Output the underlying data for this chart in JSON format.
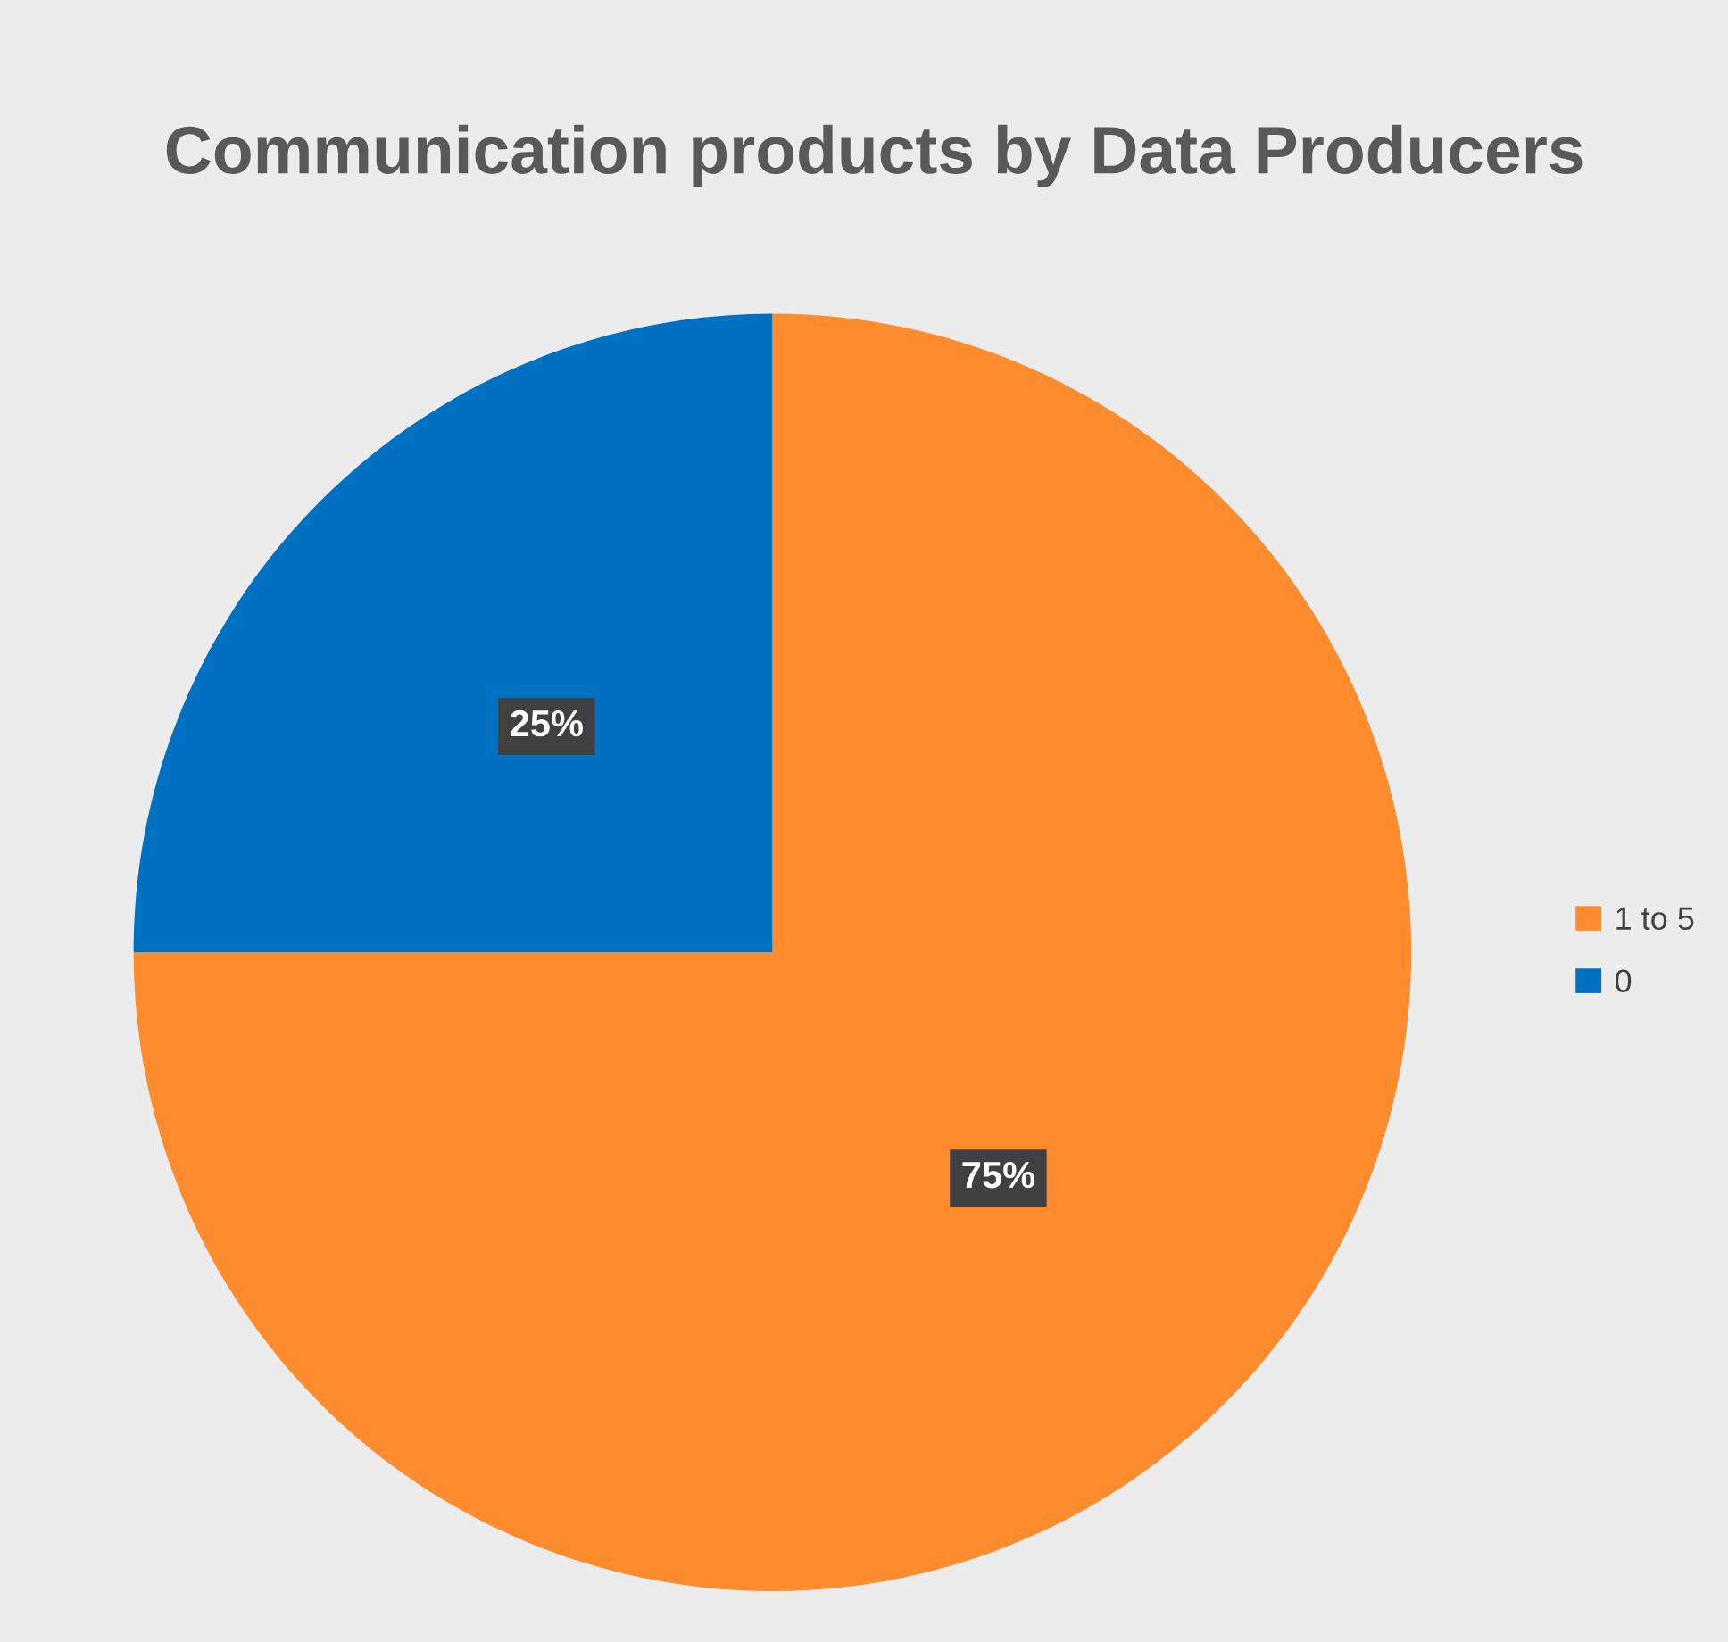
{
  "chart_data": {
    "type": "pie",
    "title": "Communication products by Data Producers",
    "categories": [
      "1 to 5",
      "0"
    ],
    "values": [
      75,
      25
    ],
    "colors": [
      "#fd8c2f",
      "#0070c0"
    ],
    "value_labels": [
      "75%",
      "25%"
    ],
    "legend": "right"
  }
}
